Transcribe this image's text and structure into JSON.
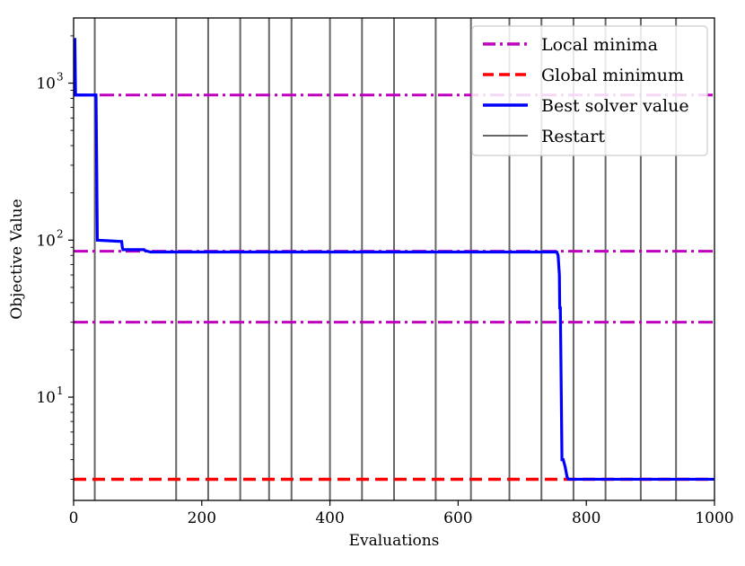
{
  "chart_data": {
    "type": "line",
    "title": "",
    "xlabel": "Evaluations",
    "ylabel": "Objective Value",
    "xlim": [
      0,
      1000
    ],
    "ylim": [
      2.2,
      2600
    ],
    "yscale": "log",
    "grid": false,
    "legend_position": "top-right",
    "x_ticks": [
      0,
      200,
      400,
      600,
      800,
      1000
    ],
    "x_tick_labels": [
      "0",
      "200",
      "400",
      "600",
      "800",
      "1000"
    ],
    "y_major_ticks": [
      10,
      100,
      1000
    ],
    "y_tick_labels": [
      "10",
      "10",
      "10"
    ],
    "y_tick_exponents": [
      "1",
      "2",
      "3"
    ],
    "local_minima": {
      "name": "Local minima",
      "values": [
        840,
        85,
        30
      ],
      "color": "#bf00bf",
      "style": "dash-dot"
    },
    "global_minimum": {
      "name": "Global minimum",
      "value": 3,
      "color": "#ff0000",
      "style": "dashed"
    },
    "best_solver": {
      "name": "Best solver value",
      "color": "#0000ff",
      "x": [
        1,
        2,
        3,
        4,
        35,
        36,
        37,
        75,
        76,
        77,
        80,
        110,
        111,
        115,
        120,
        200,
        400,
        600,
        754,
        756,
        758,
        758.5,
        759.5,
        761,
        762,
        764,
        767,
        770,
        772,
        780,
        1000
      ],
      "y": [
        1900,
        1900,
        840,
        840,
        840,
        300,
        100,
        98,
        90,
        87,
        87,
        87,
        86,
        85,
        84,
        84,
        84,
        84,
        84,
        80,
        60,
        37,
        37,
        10,
        4.0,
        4.0,
        3.6,
        3.1,
        3.0,
        3.0,
        3.0
      ]
    },
    "restarts": {
      "name": "Restart",
      "color": "#666666",
      "x": [
        33,
        160,
        210,
        260,
        305,
        340,
        400,
        450,
        500,
        565,
        620,
        680,
        730,
        780,
        830,
        885,
        940
      ]
    }
  }
}
